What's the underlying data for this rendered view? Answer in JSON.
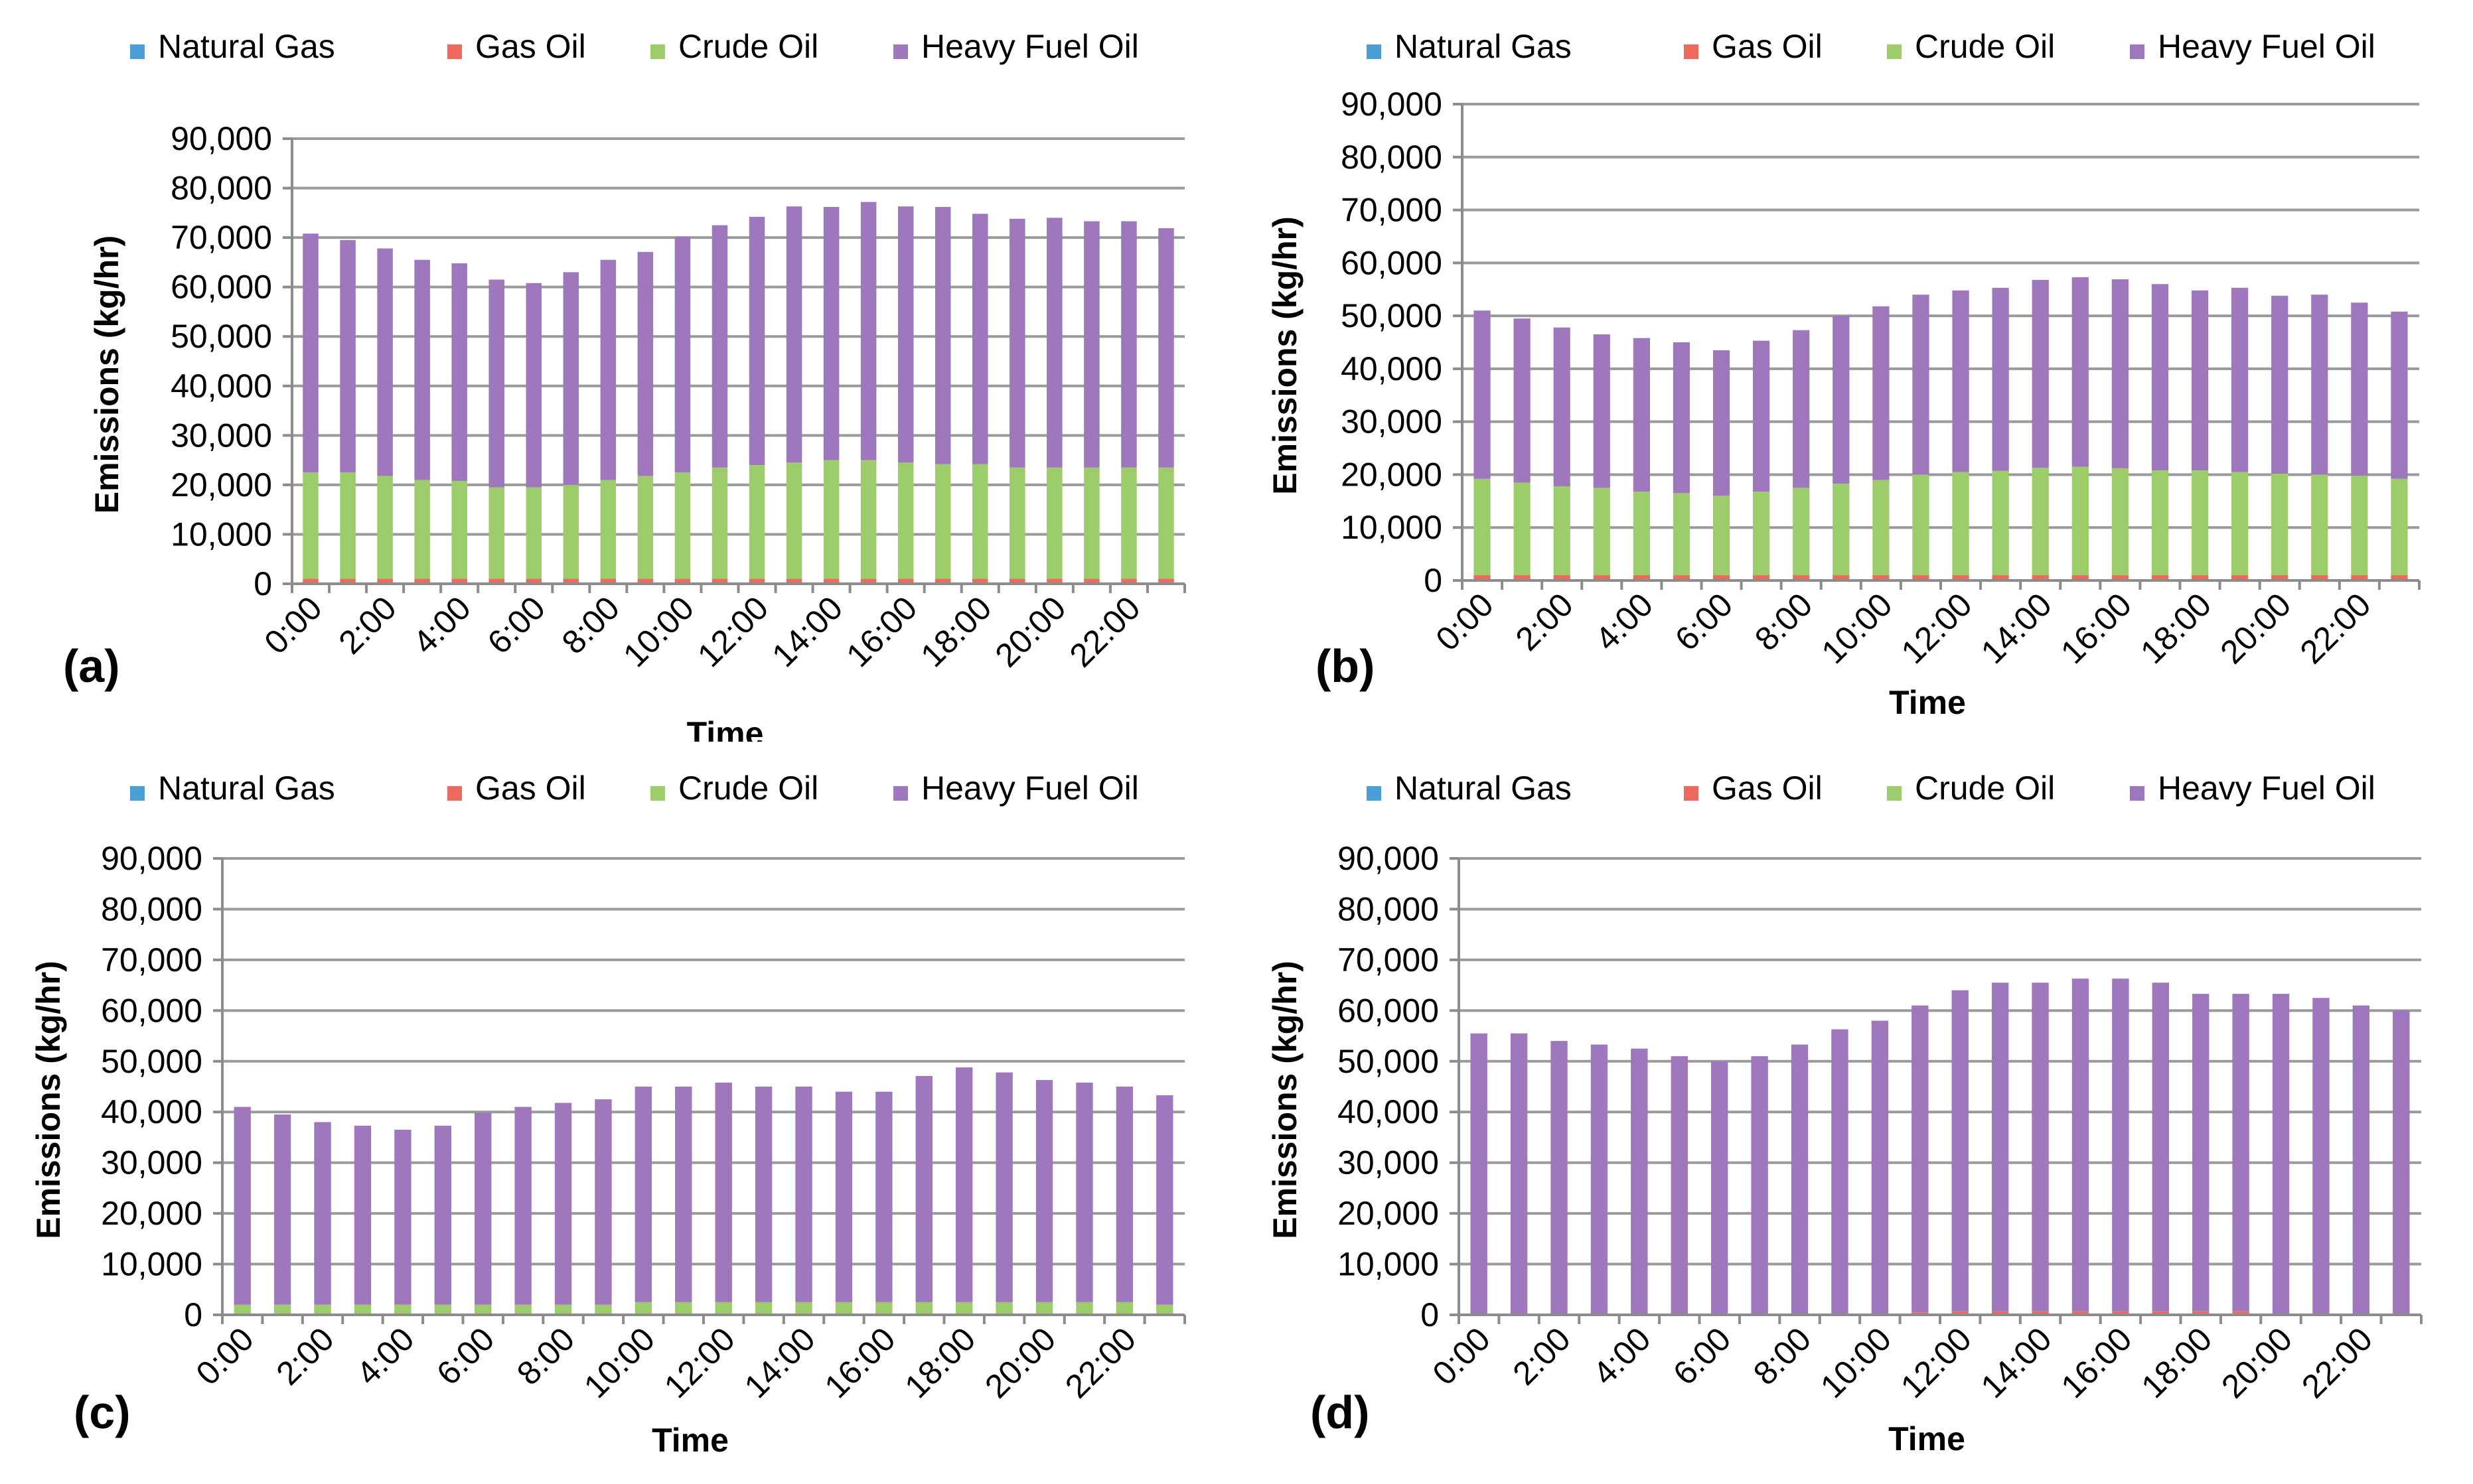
{
  "figure": {
    "colors": {
      "natural_gas": "#4a9fd6",
      "gas_oil": "#ec6b5e",
      "crude_oil": "#9dcd6a",
      "heavy_fuel_oil": "#9e77bd",
      "gridline": "#9a9a9a",
      "axis": "#8c8c8c"
    }
  },
  "chart_data": [
    {
      "type": "bar",
      "stacked": true,
      "panel_label": "(a)",
      "legend": [
        "Natural  Gas",
        "Gas Oil",
        "Crude  Oil",
        "Heavy Fuel Oil"
      ],
      "ylabel": "Emissions  (kg/hr)",
      "xlabel": "Time",
      "ylim": [
        0,
        90000
      ],
      "yticks": [
        "0",
        "10,000",
        "20,000",
        "30,000",
        "40,000",
        "50,000",
        "60,000",
        "70,000",
        "80,000",
        "90,000"
      ],
      "xtick_labels": [
        "0:00",
        "2:00",
        "4:00",
        "6:00",
        "8:00",
        "10:00",
        "12:00",
        "14:00",
        "16:00",
        "18:00",
        "20:00",
        "22:00"
      ],
      "categories": [
        "0:00",
        "1:00",
        "2:00",
        "3:00",
        "4:00",
        "5:00",
        "6:00",
        "7:00",
        "8:00",
        "9:00",
        "10:00",
        "11:00",
        "12:00",
        "13:00",
        "14:00",
        "15:00",
        "16:00",
        "17:00",
        "18:00",
        "19:00",
        "20:00",
        "21:00",
        "22:00",
        "23:00"
      ],
      "series": [
        {
          "name": "Natural  Gas",
          "values": [
            0,
            0,
            0,
            0,
            0,
            0,
            0,
            0,
            0,
            0,
            0,
            0,
            0,
            0,
            0,
            0,
            0,
            0,
            0,
            0,
            0,
            0,
            0,
            0
          ]
        },
        {
          "name": "Gas Oil",
          "values": [
            1000,
            1000,
            1000,
            1000,
            1000,
            1000,
            1000,
            1000,
            1000,
            1000,
            1000,
            1000,
            1000,
            1000,
            1000,
            1000,
            1000,
            1000,
            1000,
            1000,
            1000,
            1000,
            1000,
            1000
          ]
        },
        {
          "name": "Crude  Oil",
          "values": [
            21500,
            21500,
            20800,
            20000,
            19800,
            18500,
            18500,
            19000,
            20000,
            20800,
            21500,
            22500,
            23000,
            23500,
            24000,
            24000,
            23500,
            23200,
            23200,
            22500,
            22500,
            22500,
            22500,
            22500
          ]
        },
        {
          "name": "Heavy Fuel Oil",
          "values": [
            48300,
            47000,
            46000,
            44500,
            44000,
            42000,
            41300,
            43000,
            44500,
            45300,
            47700,
            49000,
            50200,
            51800,
            51200,
            52200,
            51800,
            52000,
            50600,
            50300,
            50500,
            49800,
            49800,
            48400
          ]
        }
      ]
    },
    {
      "type": "bar",
      "stacked": true,
      "panel_label": "(b)",
      "legend": [
        "Natural  Gas",
        "Gas Oil",
        "Crude  Oil",
        "Heavy Fuel Oil"
      ],
      "ylabel": "Emissions  (kg/hr)",
      "xlabel": "Time",
      "ylim": [
        0,
        90000
      ],
      "yticks": [
        "0",
        "10,000",
        "20,000",
        "30,000",
        "40,000",
        "50,000",
        "60,000",
        "70,000",
        "80,000",
        "90,000"
      ],
      "xtick_labels": [
        "0:00",
        "2:00",
        "4:00",
        "6:00",
        "8:00",
        "10:00",
        "12:00",
        "14:00",
        "16:00",
        "18:00",
        "20:00",
        "22:00"
      ],
      "categories": [
        "0:00",
        "1:00",
        "2:00",
        "3:00",
        "4:00",
        "5:00",
        "6:00",
        "7:00",
        "8:00",
        "9:00",
        "10:00",
        "11:00",
        "12:00",
        "13:00",
        "14:00",
        "15:00",
        "16:00",
        "17:00",
        "18:00",
        "19:00",
        "20:00",
        "21:00",
        "22:00",
        "23:00"
      ],
      "series": [
        {
          "name": "Natural  Gas",
          "values": [
            0,
            0,
            0,
            0,
            0,
            0,
            0,
            0,
            0,
            0,
            0,
            0,
            0,
            0,
            0,
            0,
            0,
            0,
            0,
            0,
            0,
            0,
            0,
            0
          ]
        },
        {
          "name": "Gas Oil",
          "values": [
            1000,
            1000,
            1000,
            1000,
            1000,
            1000,
            1000,
            1000,
            1000,
            1000,
            1000,
            1000,
            1000,
            1000,
            1000,
            1000,
            1000,
            1000,
            1000,
            1000,
            1000,
            1000,
            1000,
            1000
          ]
        },
        {
          "name": "Crude  Oil",
          "values": [
            18200,
            17500,
            16800,
            16500,
            15800,
            15500,
            15000,
            15800,
            16500,
            17300,
            18000,
            19000,
            19500,
            19700,
            20300,
            20500,
            20200,
            19800,
            19800,
            19500,
            19200,
            19000,
            18800,
            18200
          ]
        },
        {
          "name": "Heavy Fuel Oil",
          "values": [
            31800,
            31000,
            30000,
            29000,
            29000,
            28500,
            27500,
            28500,
            29800,
            31700,
            32800,
            34000,
            34300,
            34600,
            35500,
            35800,
            35700,
            35200,
            34000,
            34800,
            33600,
            34000,
            32700,
            31600
          ]
        }
      ]
    },
    {
      "type": "bar",
      "stacked": true,
      "panel_label": "(c)",
      "legend": [
        "Natural  Gas",
        "Gas Oil",
        "Crude  Oil",
        "Heavy Fuel Oil"
      ],
      "ylabel": "Emissions  (kg/hr)",
      "xlabel": "Time",
      "ylim": [
        0,
        90000
      ],
      "yticks": [
        "0",
        "10,000",
        "20,000",
        "30,000",
        "40,000",
        "50,000",
        "60,000",
        "70,000",
        "80,000",
        "90,000"
      ],
      "xtick_labels": [
        "0:00",
        "2:00",
        "4:00",
        "6:00",
        "8:00",
        "10:00",
        "12:00",
        "14:00",
        "16:00",
        "18:00",
        "20:00",
        "22:00"
      ],
      "categories": [
        "0:00",
        "1:00",
        "2:00",
        "3:00",
        "4:00",
        "5:00",
        "6:00",
        "7:00",
        "8:00",
        "9:00",
        "10:00",
        "11:00",
        "12:00",
        "13:00",
        "14:00",
        "15:00",
        "16:00",
        "17:00",
        "18:00",
        "19:00",
        "20:00",
        "21:00",
        "22:00",
        "23:00"
      ],
      "series": [
        {
          "name": "Natural  Gas",
          "values": [
            0,
            0,
            0,
            0,
            0,
            0,
            0,
            0,
            0,
            0,
            0,
            0,
            0,
            0,
            0,
            0,
            0,
            0,
            0,
            0,
            0,
            0,
            0,
            0
          ]
        },
        {
          "name": "Gas Oil",
          "values": [
            0,
            0,
            0,
            0,
            0,
            0,
            0,
            0,
            0,
            0,
            0,
            0,
            0,
            0,
            0,
            0,
            0,
            0,
            0,
            0,
            0,
            0,
            0,
            0
          ]
        },
        {
          "name": "Crude  Oil",
          "values": [
            2000,
            2000,
            2000,
            2000,
            2000,
            2000,
            2000,
            2000,
            2000,
            2000,
            2500,
            2500,
            2500,
            2500,
            2500,
            2500,
            2500,
            2500,
            2500,
            2500,
            2500,
            2500,
            2500,
            2000
          ]
        },
        {
          "name": "Heavy Fuel Oil",
          "values": [
            39000,
            37500,
            36000,
            35300,
            34500,
            35300,
            37800,
            39000,
            39800,
            40500,
            42500,
            42500,
            43300,
            42500,
            42500,
            41500,
            41500,
            44600,
            46300,
            45300,
            43800,
            43300,
            42500,
            41300
          ]
        }
      ]
    },
    {
      "type": "bar",
      "stacked": true,
      "panel_label": "(d)",
      "legend": [
        "Natural  Gas",
        "Gas Oil",
        "Crude  Oil",
        "Heavy Fuel Oil"
      ],
      "ylabel": "Emissions  (kg/hr)",
      "xlabel": "Time",
      "ylim": [
        0,
        90000
      ],
      "yticks": [
        "0",
        "10,000",
        "20,000",
        "30,000",
        "40,000",
        "50,000",
        "60,000",
        "70,000",
        "80,000",
        "90,000"
      ],
      "xtick_labels": [
        "0:00",
        "2:00",
        "4:00",
        "6:00",
        "8:00",
        "10:00",
        "12:00",
        "14:00",
        "16:00",
        "18:00",
        "20:00",
        "22:00"
      ],
      "categories": [
        "0:00",
        "1:00",
        "2:00",
        "3:00",
        "4:00",
        "5:00",
        "6:00",
        "7:00",
        "8:00",
        "9:00",
        "10:00",
        "11:00",
        "12:00",
        "13:00",
        "14:00",
        "15:00",
        "16:00",
        "17:00",
        "18:00",
        "19:00",
        "20:00",
        "21:00",
        "22:00",
        "23:00"
      ],
      "series": [
        {
          "name": "Natural  Gas",
          "values": [
            0,
            0,
            0,
            0,
            0,
            0,
            0,
            0,
            0,
            0,
            0,
            0,
            0,
            0,
            0,
            0,
            0,
            0,
            0,
            0,
            0,
            0,
            0,
            0
          ]
        },
        {
          "name": "Gas Oil",
          "values": [
            0,
            0,
            0,
            0,
            0,
            0,
            0,
            0,
            0,
            0,
            0,
            500,
            700,
            700,
            700,
            700,
            700,
            700,
            700,
            700,
            0,
            0,
            0,
            0
          ]
        },
        {
          "name": "Crude  Oil",
          "values": [
            0,
            0,
            0,
            0,
            0,
            0,
            0,
            0,
            0,
            0,
            0,
            0,
            0,
            0,
            0,
            0,
            0,
            0,
            0,
            0,
            0,
            0,
            0,
            0
          ]
        },
        {
          "name": "Heavy Fuel Oil",
          "values": [
            55500,
            55500,
            54000,
            53300,
            52500,
            51000,
            50000,
            51000,
            53300,
            56300,
            58000,
            60500,
            63300,
            64800,
            64800,
            65600,
            65600,
            64800,
            62600,
            62600,
            63300,
            62500,
            61000,
            60000
          ]
        }
      ]
    }
  ]
}
